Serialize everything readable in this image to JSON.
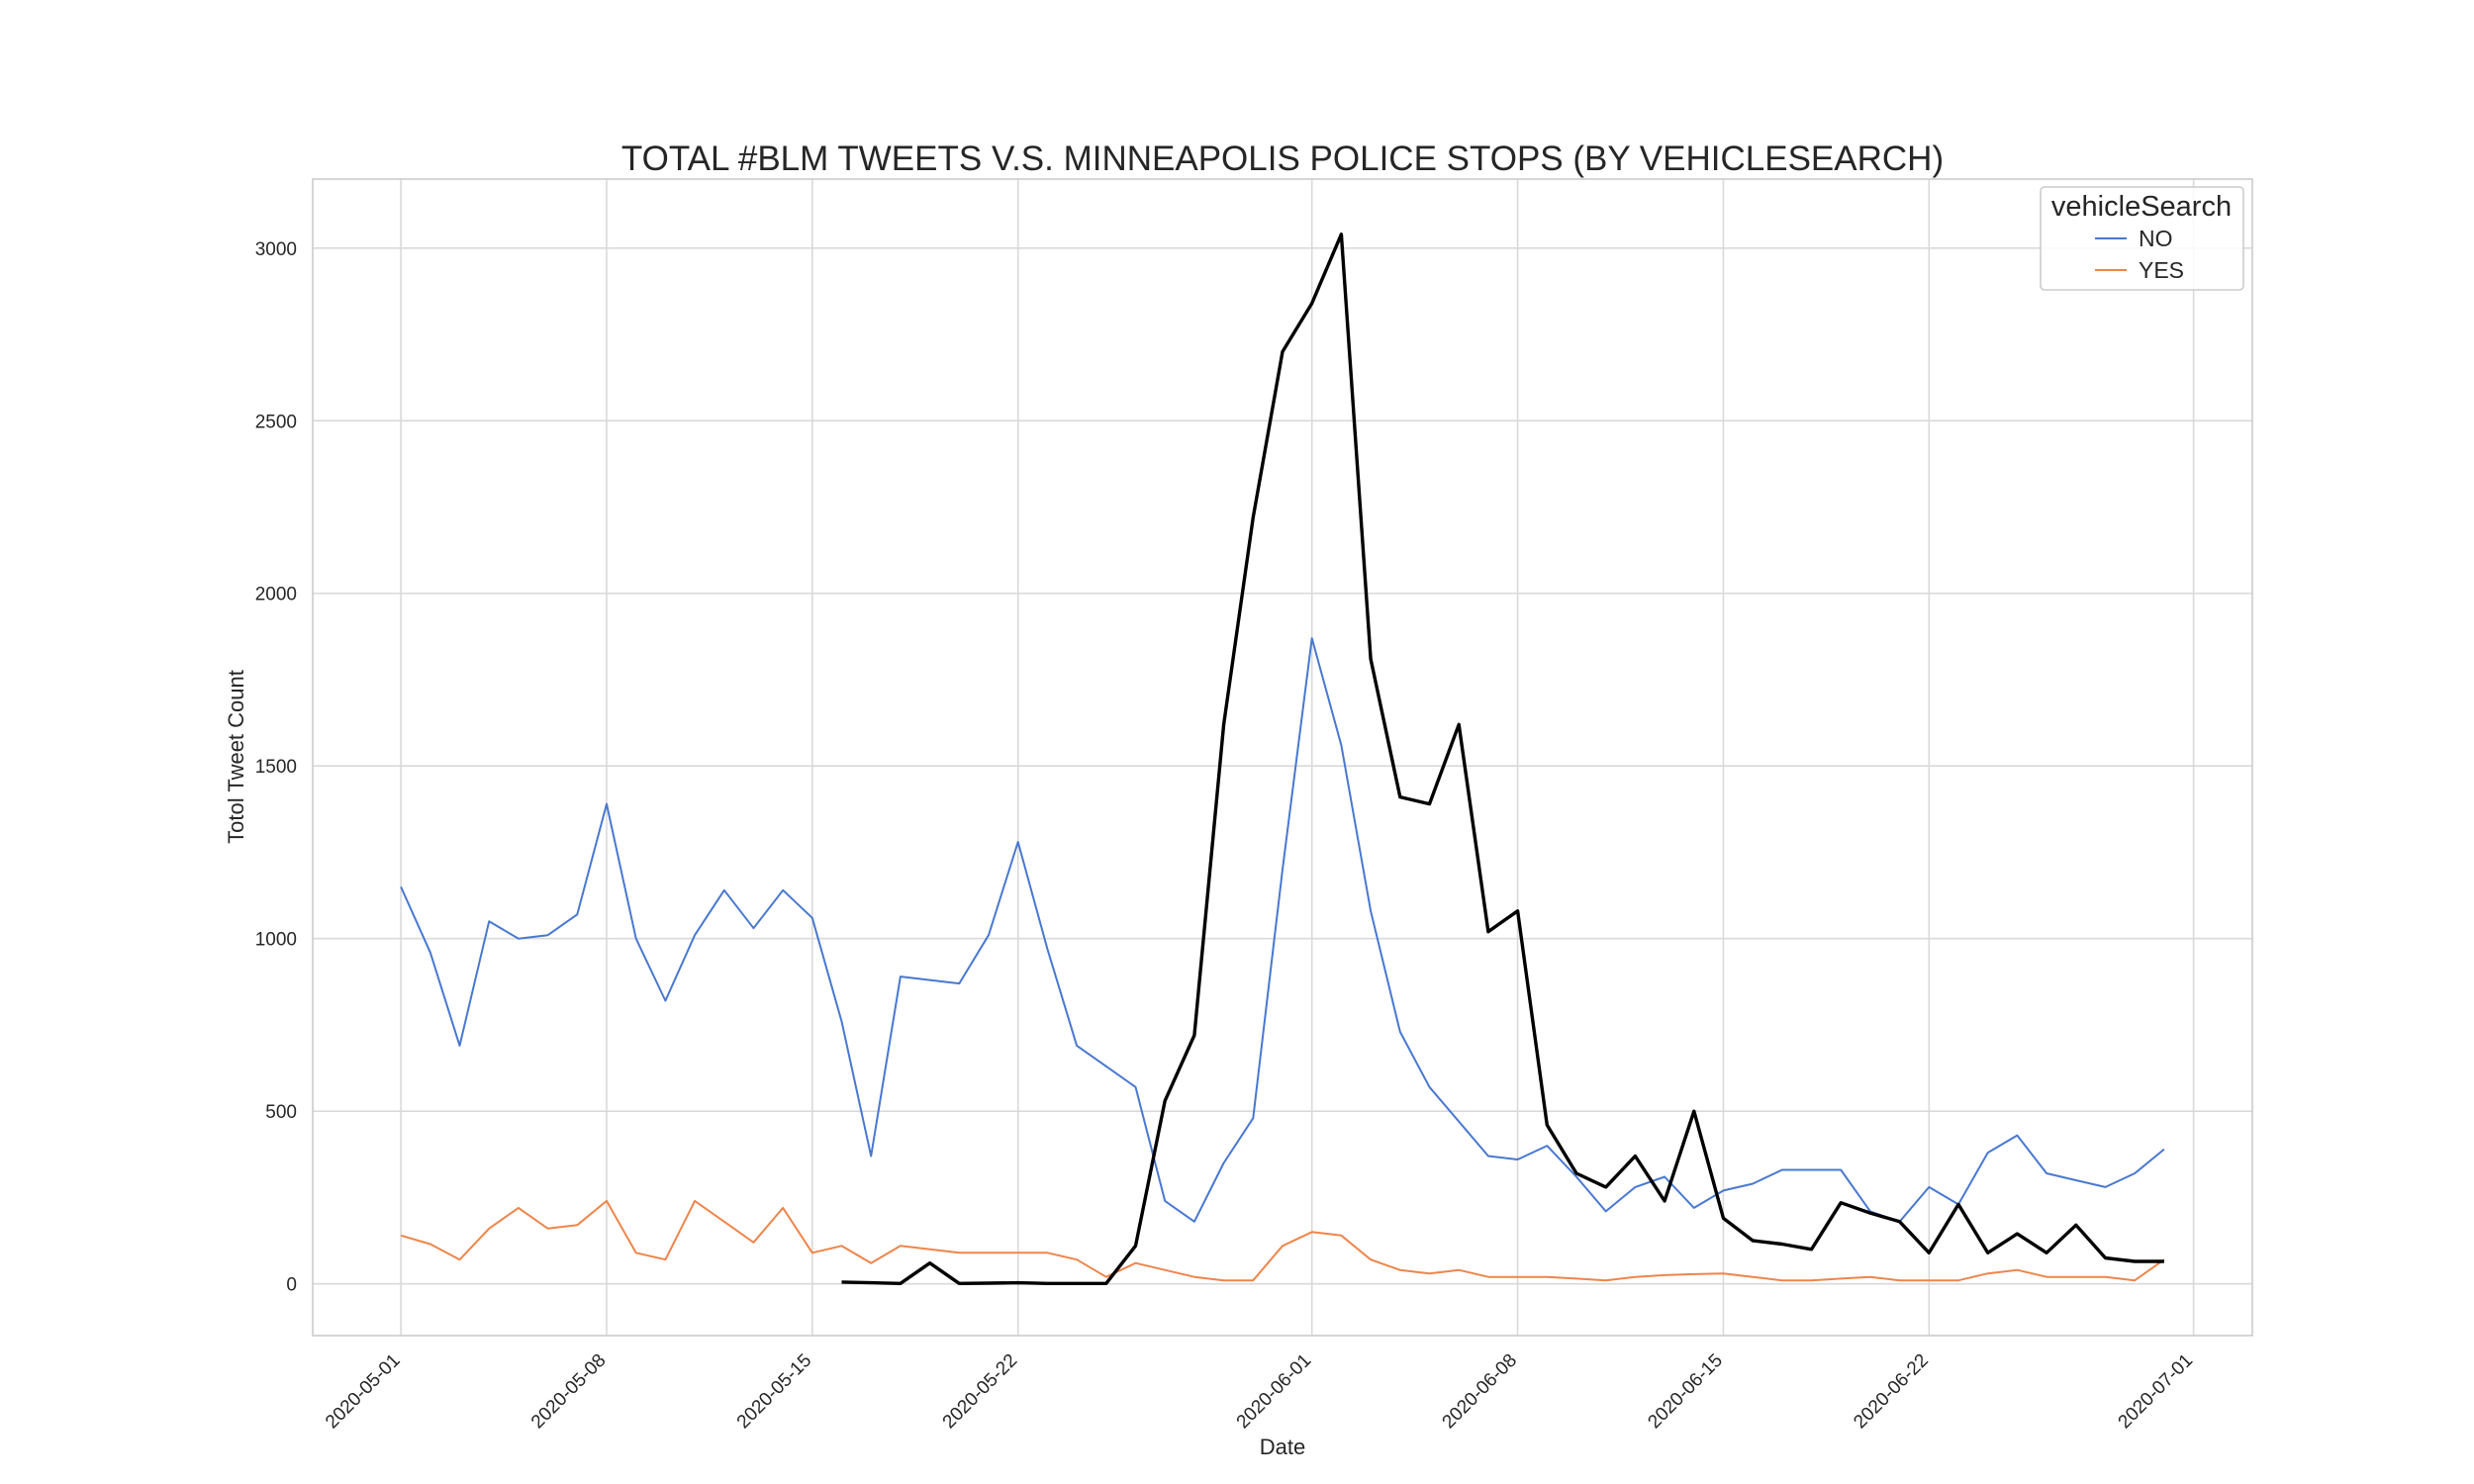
{
  "chart_data": {
    "type": "line",
    "title": "TOTAL #BLM TWEETS V.S. MINNEAPOLIS POLICE STOPS (BY VEHICLESEARCH)",
    "xlabel": "Date",
    "ylabel": "Totol Tweet Count",
    "xlim": [
      "2020-04-28",
      "2020-07-03"
    ],
    "ylim": [
      -150,
      3200
    ],
    "xticks": [
      "2020-05-01",
      "2020-05-08",
      "2020-05-15",
      "2020-05-22",
      "2020-06-01",
      "2020-06-08",
      "2020-06-15",
      "2020-06-22",
      "2020-07-01"
    ],
    "yticks": [
      0,
      500,
      1000,
      1500,
      2000,
      2500,
      3000
    ],
    "grid": true,
    "legend": {
      "title": "vehicleSearch",
      "placement": "top-right"
    },
    "series": [
      {
        "name": "NO",
        "color": "#4878d0",
        "x": [
          "2020-05-01",
          "2020-05-02",
          "2020-05-03",
          "2020-05-04",
          "2020-05-05",
          "2020-05-06",
          "2020-05-07",
          "2020-05-08",
          "2020-05-09",
          "2020-05-10",
          "2020-05-11",
          "2020-05-12",
          "2020-05-13",
          "2020-05-14",
          "2020-05-15",
          "2020-05-16",
          "2020-05-17",
          "2020-05-18",
          "2020-05-19",
          "2020-05-20",
          "2020-05-21",
          "2020-05-22",
          "2020-05-23",
          "2020-05-24",
          "2020-05-25",
          "2020-05-26",
          "2020-05-27",
          "2020-05-28",
          "2020-05-29",
          "2020-05-30",
          "2020-05-31",
          "2020-06-01",
          "2020-06-02",
          "2020-06-03",
          "2020-06-04",
          "2020-06-05",
          "2020-06-06",
          "2020-06-07",
          "2020-06-08",
          "2020-06-09",
          "2020-06-10",
          "2020-06-11",
          "2020-06-12",
          "2020-06-13",
          "2020-06-14",
          "2020-06-15",
          "2020-06-16",
          "2020-06-17",
          "2020-06-18",
          "2020-06-19",
          "2020-06-20",
          "2020-06-21",
          "2020-06-22",
          "2020-06-23",
          "2020-06-24",
          "2020-06-25",
          "2020-06-26",
          "2020-06-27",
          "2020-06-28",
          "2020-06-29",
          "2020-06-30"
        ],
        "values": [
          1150,
          960,
          690,
          1050,
          1000,
          1010,
          1070,
          1390,
          1000,
          820,
          1010,
          1140,
          1030,
          1140,
          1060,
          760,
          370,
          890,
          880,
          870,
          1010,
          1280,
          970,
          690,
          630,
          570,
          240,
          180,
          350,
          480,
          1200,
          1870,
          1560,
          1080,
          730,
          570,
          470,
          370,
          360,
          400,
          310,
          210,
          280,
          310,
          220,
          270,
          290,
          330,
          330,
          330,
          210,
          180,
          280,
          230,
          380,
          430,
          320,
          300,
          280,
          320,
          390
        ]
      },
      {
        "name": "YES",
        "color": "#ee854a",
        "x": [
          "2020-05-01",
          "2020-05-02",
          "2020-05-03",
          "2020-05-04",
          "2020-05-05",
          "2020-05-06",
          "2020-05-07",
          "2020-05-08",
          "2020-05-09",
          "2020-05-10",
          "2020-05-11",
          "2020-05-12",
          "2020-05-13",
          "2020-05-14",
          "2020-05-15",
          "2020-05-16",
          "2020-05-17",
          "2020-05-18",
          "2020-05-19",
          "2020-05-20",
          "2020-05-21",
          "2020-05-22",
          "2020-05-23",
          "2020-05-24",
          "2020-05-25",
          "2020-05-26",
          "2020-05-27",
          "2020-05-28",
          "2020-05-29",
          "2020-05-30",
          "2020-05-31",
          "2020-06-01",
          "2020-06-02",
          "2020-06-03",
          "2020-06-04",
          "2020-06-05",
          "2020-06-06",
          "2020-06-07",
          "2020-06-08",
          "2020-06-09",
          "2020-06-10",
          "2020-06-11",
          "2020-06-12",
          "2020-06-13",
          "2020-06-14",
          "2020-06-15",
          "2020-06-16",
          "2020-06-17",
          "2020-06-18",
          "2020-06-19",
          "2020-06-20",
          "2020-06-21",
          "2020-06-22",
          "2020-06-23",
          "2020-06-24",
          "2020-06-25",
          "2020-06-26",
          "2020-06-27",
          "2020-06-28",
          "2020-06-29",
          "2020-06-30"
        ],
        "values": [
          140,
          115,
          70,
          160,
          220,
          160,
          170,
          240,
          90,
          70,
          240,
          180,
          120,
          220,
          90,
          110,
          60,
          110,
          100,
          90,
          90,
          90,
          90,
          70,
          20,
          60,
          40,
          20,
          10,
          10,
          110,
          150,
          140,
          70,
          40,
          30,
          40,
          20,
          20,
          20,
          15,
          10,
          20,
          25,
          28,
          30,
          20,
          10,
          10,
          15,
          20,
          10,
          10,
          10,
          30,
          40,
          20,
          20,
          20,
          10,
          70
        ]
      },
      {
        "color": "#000000",
        "x": [
          "2020-05-16",
          "2020-05-17",
          "2020-05-18",
          "2020-05-19",
          "2020-05-20",
          "2020-05-21",
          "2020-05-22",
          "2020-05-23",
          "2020-05-24",
          "2020-05-25",
          "2020-05-26",
          "2020-05-27",
          "2020-05-28",
          "2020-05-29",
          "2020-05-30",
          "2020-05-31",
          "2020-06-01",
          "2020-06-02",
          "2020-06-03",
          "2020-06-04",
          "2020-06-05",
          "2020-06-06",
          "2020-06-07",
          "2020-06-08",
          "2020-06-09",
          "2020-06-10",
          "2020-06-11",
          "2020-06-12",
          "2020-06-13",
          "2020-06-14",
          "2020-06-15",
          "2020-06-16",
          "2020-06-17",
          "2020-06-18",
          "2020-06-19",
          "2020-06-20",
          "2020-06-21",
          "2020-06-22",
          "2020-06-23",
          "2020-06-24",
          "2020-06-25",
          "2020-06-26",
          "2020-06-27",
          "2020-06-28",
          "2020-06-29",
          "2020-06-30"
        ],
        "values": [
          5,
          3,
          1,
          60,
          1,
          2,
          3,
          1,
          1,
          1,
          110,
          530,
          720,
          1620,
          2220,
          2700,
          2840,
          3040,
          1810,
          1410,
          1390,
          1620,
          1020,
          1080,
          460,
          320,
          280,
          370,
          240,
          500,
          190,
          125,
          115,
          100,
          235,
          205,
          180,
          90,
          230,
          90,
          145,
          90,
          170,
          75,
          65,
          65
        ]
      }
    ]
  }
}
